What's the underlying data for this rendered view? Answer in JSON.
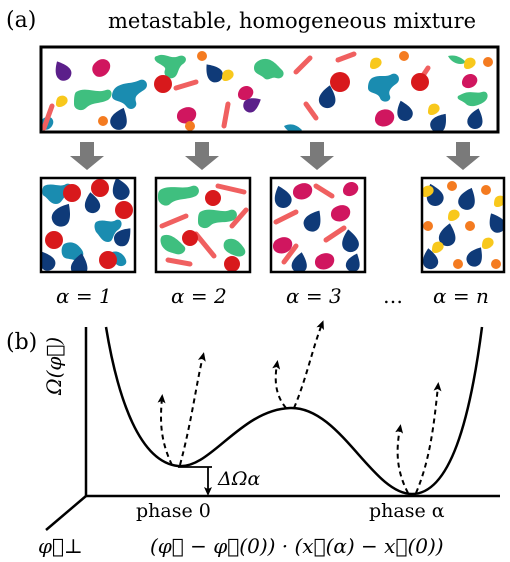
{
  "panel_a": {
    "label": "(a)",
    "title": "metastable, homogeneous mixture",
    "phase_labels": [
      "α = 1",
      "α = 2",
      "α = 3",
      "α = n"
    ],
    "ellipsis": "…"
  },
  "panel_b": {
    "label": "(b)",
    "y_axis_label": "Ω(φ⃗)",
    "perp_axis_label": "φ⃗⊥",
    "x_axis_label": "(φ⃗ − φ⃗(0)) · (x⃗(α) − x⃗(0))",
    "phase0_label": "phase 0",
    "phase_alpha_label": "phase α",
    "barrier_label": "ΔΩα"
  },
  "colors": {
    "navy": "#0f3a78",
    "teal": "#1a8cb0",
    "red": "#d8191c",
    "green": "#3fbf7f",
    "salmon": "#f06060",
    "magenta": "#d0165f",
    "orange": "#f47b20",
    "yellow": "#f8c81c",
    "purple": "#5b1f8a",
    "arrow_gray": "#7a7a7a"
  }
}
